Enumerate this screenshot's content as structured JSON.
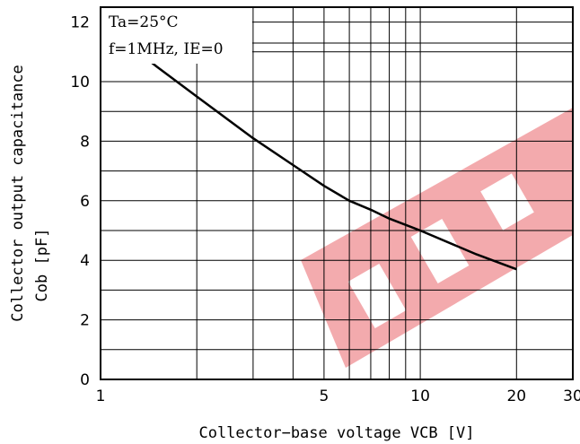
{
  "chart_data": {
    "type": "line",
    "title": "",
    "xlabel": "Collector−base voltage VCB [V]",
    "ylabel_lines": [
      "Collector output capacitance",
      "Cob [pF]"
    ],
    "x_scale": "log",
    "xlim": [
      1,
      30
    ],
    "ylim": [
      0,
      12.5
    ],
    "x_ticks": [
      1,
      5,
      10,
      20,
      30
    ],
    "x_tick_labels": [
      "1",
      "5",
      "10",
      "20",
      "30"
    ],
    "y_ticks": [
      0,
      2,
      4,
      6,
      8,
      10,
      12
    ],
    "y_tick_labels": [
      "0",
      "2",
      "4",
      "6",
      "8",
      "10",
      "12"
    ],
    "grid": true,
    "annotations": [
      "Ta=25°C",
      "f=1MHz, IE=0"
    ],
    "series": [
      {
        "x": [
          1,
          1.5,
          2,
          3,
          4,
          5,
          6,
          7,
          8,
          10,
          15,
          20
        ],
        "y": [
          12.0,
          10.5,
          9.5,
          8.1,
          7.2,
          6.5,
          6.0,
          5.7,
          5.4,
          5.0,
          4.2,
          3.7
        ]
      }
    ],
    "line_color": "#000000",
    "watermark_color": "#e8585e"
  }
}
